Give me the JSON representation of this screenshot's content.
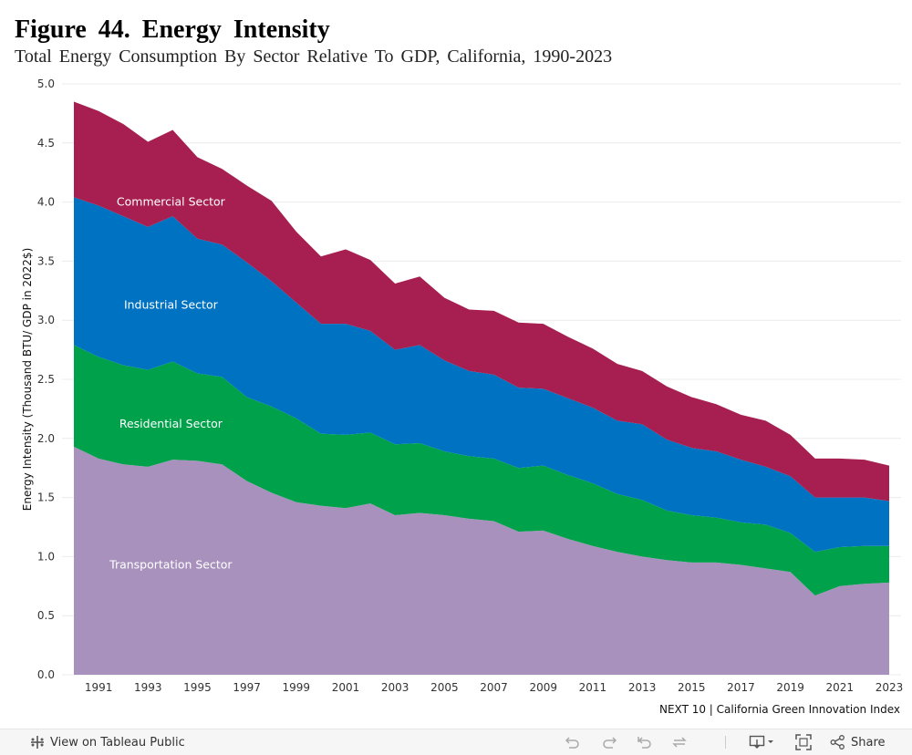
{
  "page": {
    "title": "Figure  44.  Energy  Intensity",
    "subtitle": "Total Energy Consumption By Sector Relative To GDP, California, 1990-2023",
    "source": "NEXT 10 | California Green Innovation Index"
  },
  "toolbar": {
    "view_label": "View on Tableau Public",
    "share_label": "Share",
    "icons": [
      "tableau-icon",
      "undo-icon",
      "redo-icon",
      "revert-icon",
      "refresh-icon",
      "download-icon",
      "fullscreen-icon",
      "share-icon"
    ]
  },
  "chart_data": {
    "type": "area",
    "stacked": true,
    "title": "Figure  44.  Energy  Intensity",
    "subtitle": "Total Energy Consumption By Sector Relative To GDP, California, 1990-2023",
    "xlabel": "",
    "ylabel": "Energy Intensity (Thousand BTU/ GDP in 2022$)",
    "ylim": [
      0,
      5.0
    ],
    "yticks": [
      "0.0",
      "0.5",
      "1.0",
      "1.5",
      "2.0",
      "2.5",
      "3.0",
      "3.5",
      "4.0",
      "4.5",
      "5.0"
    ],
    "xtick_labels": [
      "1991",
      "1993",
      "1995",
      "1997",
      "1999",
      "2001",
      "2003",
      "2005",
      "2007",
      "2009",
      "2011",
      "2013",
      "2015",
      "2017",
      "2019",
      "2021",
      "2023"
    ],
    "grid": true,
    "legend": "inline labels",
    "x": [
      1990,
      1991,
      1992,
      1993,
      1994,
      1995,
      1996,
      1997,
      1998,
      1999,
      2000,
      2001,
      2002,
      2003,
      2004,
      2005,
      2006,
      2007,
      2008,
      2009,
      2010,
      2011,
      2012,
      2013,
      2014,
      2015,
      2016,
      2017,
      2018,
      2019,
      2020,
      2021,
      2022,
      2023
    ],
    "series": [
      {
        "name": "Transportation Sector",
        "color": "#a892bd",
        "values": [
          1.93,
          1.83,
          1.78,
          1.76,
          1.82,
          1.81,
          1.78,
          1.64,
          1.54,
          1.46,
          1.43,
          1.41,
          1.45,
          1.35,
          1.37,
          1.35,
          1.32,
          1.3,
          1.21,
          1.22,
          1.15,
          1.09,
          1.04,
          1.0,
          0.97,
          0.95,
          0.95,
          0.93,
          0.9,
          0.87,
          0.67,
          0.75,
          0.77,
          0.78
        ]
      },
      {
        "name": "Residential Sector",
        "color": "#00a14b",
        "values": [
          0.86,
          0.86,
          0.84,
          0.82,
          0.83,
          0.74,
          0.74,
          0.71,
          0.73,
          0.71,
          0.61,
          0.62,
          0.6,
          0.6,
          0.59,
          0.54,
          0.53,
          0.53,
          0.54,
          0.55,
          0.54,
          0.53,
          0.49,
          0.48,
          0.42,
          0.4,
          0.38,
          0.36,
          0.37,
          0.33,
          0.37,
          0.33,
          0.32,
          0.31
        ]
      },
      {
        "name": "Industrial Sector",
        "color": "#0072c2",
        "values": [
          1.25,
          1.28,
          1.26,
          1.21,
          1.23,
          1.14,
          1.12,
          1.14,
          1.06,
          0.98,
          0.93,
          0.94,
          0.86,
          0.8,
          0.83,
          0.77,
          0.72,
          0.71,
          0.68,
          0.65,
          0.65,
          0.64,
          0.62,
          0.64,
          0.6,
          0.57,
          0.56,
          0.53,
          0.49,
          0.48,
          0.46,
          0.42,
          0.41,
          0.38
        ]
      },
      {
        "name": "Commercial Sector",
        "color": "#a61f50",
        "values": [
          0.81,
          0.8,
          0.78,
          0.72,
          0.73,
          0.69,
          0.64,
          0.65,
          0.68,
          0.6,
          0.57,
          0.63,
          0.6,
          0.56,
          0.58,
          0.53,
          0.52,
          0.54,
          0.55,
          0.55,
          0.52,
          0.5,
          0.48,
          0.45,
          0.45,
          0.43,
          0.4,
          0.38,
          0.39,
          0.35,
          0.33,
          0.33,
          0.32,
          0.3
        ]
      }
    ],
    "annotations": [
      "Commercial Sector",
      "Industrial Sector",
      "Residential Sector",
      "Transportation Sector"
    ]
  }
}
